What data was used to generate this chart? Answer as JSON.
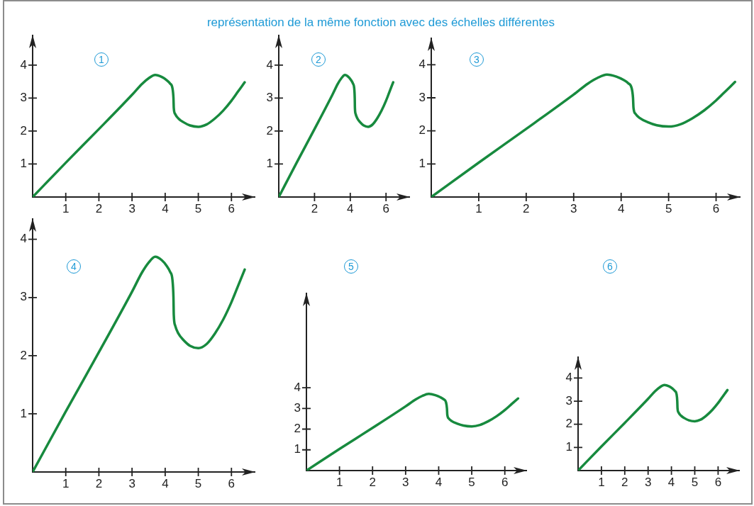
{
  "chart_data": [
    {
      "type": "other",
      "title": "représentation de la même fonction avec des échelles différentes"
    },
    {
      "type": "line",
      "annotations": [
        "1"
      ],
      "x": [
        0,
        1,
        2,
        3,
        3.3,
        3.5,
        3.7,
        3.9,
        4.05,
        4.15,
        4.22,
        4.25,
        4.26,
        4.3,
        4.4,
        4.55,
        4.75,
        5,
        5.25,
        5.5,
        5.75,
        6,
        6.2,
        6.4
      ],
      "values": [
        0,
        1.04,
        2.06,
        3.1,
        3.43,
        3.6,
        3.7,
        3.64,
        3.54,
        3.44,
        3.3,
        3.0,
        2.7,
        2.52,
        2.38,
        2.27,
        2.17,
        2.13,
        2.2,
        2.38,
        2.62,
        2.92,
        3.2,
        3.48
      ],
      "color": "#178a3e",
      "xlim": [
        0,
        6.7
      ],
      "ylim": [
        0,
        4.9
      ],
      "xticks": [
        1,
        2,
        3,
        4,
        5,
        6
      ],
      "yticks": [
        1,
        2,
        3,
        4
      ]
    },
    {
      "type": "line",
      "annotations": [
        "2"
      ],
      "x": [
        0,
        1,
        2,
        3,
        3.3,
        3.5,
        3.7,
        3.9,
        4.05,
        4.15,
        4.22,
        4.25,
        4.26,
        4.3,
        4.4,
        4.55,
        4.75,
        5,
        5.25,
        5.5,
        5.75,
        6,
        6.2,
        6.4
      ],
      "values": [
        0,
        1.04,
        2.06,
        3.1,
        3.43,
        3.6,
        3.7,
        3.64,
        3.54,
        3.44,
        3.3,
        3.0,
        2.7,
        2.52,
        2.38,
        2.27,
        2.17,
        2.13,
        2.2,
        2.38,
        2.62,
        2.92,
        3.2,
        3.48
      ],
      "color": "#178a3e",
      "xlim": [
        0,
        7.3
      ],
      "ylim": [
        0,
        4.9
      ],
      "xticks": [
        2,
        4,
        6
      ],
      "yticks": [
        1,
        2,
        3,
        4
      ]
    },
    {
      "type": "line",
      "annotations": [
        "3"
      ],
      "x": [
        0,
        1,
        2,
        3,
        3.3,
        3.5,
        3.7,
        3.9,
        4.05,
        4.15,
        4.22,
        4.25,
        4.26,
        4.3,
        4.4,
        4.55,
        4.75,
        5,
        5.25,
        5.5,
        5.75,
        6,
        6.2,
        6.4
      ],
      "values": [
        0,
        1.04,
        2.06,
        3.1,
        3.43,
        3.6,
        3.7,
        3.64,
        3.54,
        3.44,
        3.3,
        3.0,
        2.7,
        2.52,
        2.38,
        2.27,
        2.17,
        2.13,
        2.2,
        2.38,
        2.62,
        2.92,
        3.2,
        3.48
      ],
      "color": "#178a3e",
      "xlim": [
        0,
        6.5
      ],
      "ylim": [
        0,
        4.8
      ],
      "xticks": [
        1,
        2,
        3,
        4,
        5,
        6
      ],
      "yticks": [
        1,
        2,
        3,
        4
      ]
    },
    {
      "type": "line",
      "annotations": [
        "4"
      ],
      "x": [
        0,
        1,
        2,
        3,
        3.3,
        3.5,
        3.7,
        3.9,
        4.05,
        4.15,
        4.22,
        4.25,
        4.26,
        4.3,
        4.4,
        4.55,
        4.75,
        5,
        5.25,
        5.5,
        5.75,
        6,
        6.2,
        6.4
      ],
      "values": [
        0,
        1.04,
        2.06,
        3.1,
        3.43,
        3.6,
        3.7,
        3.64,
        3.54,
        3.44,
        3.3,
        3.0,
        2.7,
        2.52,
        2.38,
        2.27,
        2.17,
        2.13,
        2.2,
        2.38,
        2.62,
        2.92,
        3.2,
        3.48
      ],
      "color": "#178a3e",
      "xlim": [
        0,
        6.7
      ],
      "ylim": [
        0,
        4.35
      ],
      "xticks": [
        1,
        2,
        3,
        4,
        5,
        6
      ],
      "yticks": [
        1,
        2,
        3,
        4
      ]
    },
    {
      "type": "line",
      "annotations": [
        "5"
      ],
      "x": [
        0,
        1,
        2,
        3,
        3.3,
        3.5,
        3.7,
        3.9,
        4.05,
        4.15,
        4.22,
        4.25,
        4.26,
        4.3,
        4.4,
        4.55,
        4.75,
        5,
        5.25,
        5.5,
        5.75,
        6,
        6.2,
        6.4
      ],
      "values": [
        0,
        1.04,
        2.06,
        3.1,
        3.43,
        3.6,
        3.7,
        3.64,
        3.54,
        3.44,
        3.3,
        3.0,
        2.7,
        2.52,
        2.38,
        2.27,
        2.17,
        2.13,
        2.2,
        2.38,
        2.62,
        2.92,
        3.2,
        3.48
      ],
      "color": "#178a3e",
      "xlim": [
        0,
        6.65
      ],
      "ylim": [
        0,
        8.55
      ],
      "xticks": [
        1,
        2,
        3,
        4,
        5,
        6
      ],
      "yticks": [
        1,
        2,
        3,
        4
      ]
    },
    {
      "type": "line",
      "annotations": [
        "6"
      ],
      "x": [
        0,
        1,
        2,
        3,
        3.3,
        3.5,
        3.7,
        3.9,
        4.05,
        4.15,
        4.22,
        4.25,
        4.26,
        4.3,
        4.4,
        4.55,
        4.75,
        5,
        5.25,
        5.5,
        5.75,
        6,
        6.2,
        6.4
      ],
      "values": [
        0,
        1.04,
        2.06,
        3.1,
        3.43,
        3.6,
        3.7,
        3.64,
        3.54,
        3.44,
        3.3,
        3.0,
        2.7,
        2.52,
        2.38,
        2.27,
        2.17,
        2.13,
        2.2,
        2.38,
        2.62,
        2.92,
        3.2,
        3.48
      ],
      "color": "#178a3e",
      "xlim": [
        0,
        6.9
      ],
      "ylim": [
        0,
        4.9
      ],
      "xticks": [
        1,
        2,
        3,
        4,
        5,
        6
      ],
      "yticks": [
        1,
        2,
        3,
        4
      ]
    }
  ]
}
